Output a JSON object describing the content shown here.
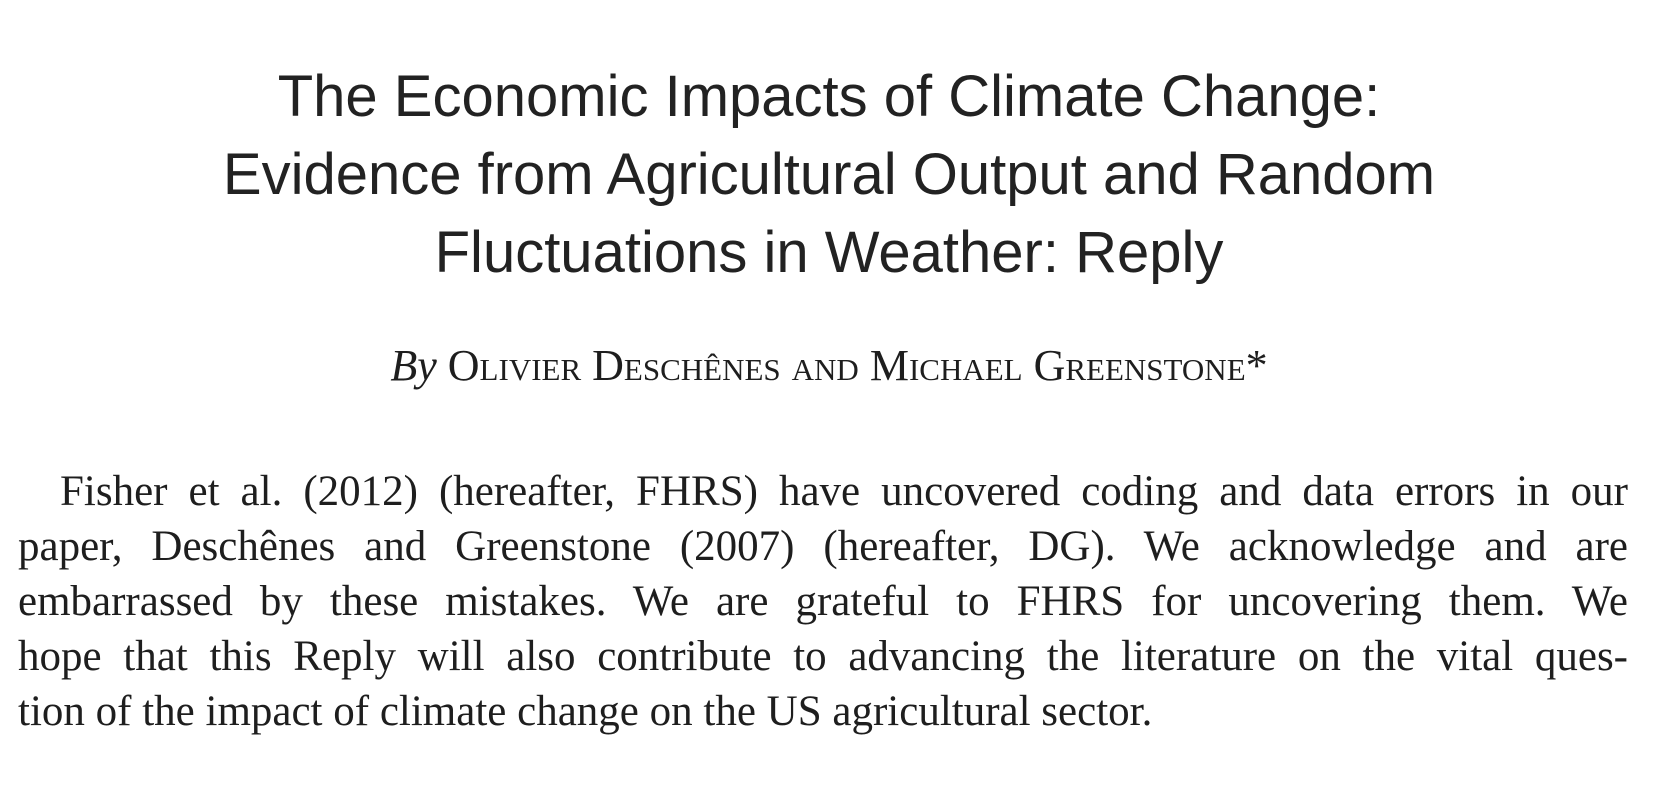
{
  "paper": {
    "title_lines": [
      "The Economic Impacts of Climate Change:",
      "Evidence from Agricultural Output and Random",
      "Fluctuations in Weather: Reply"
    ],
    "byline": {
      "by": "By",
      "authors": "Olivier Deschênes and Michael Greenstone*"
    },
    "abstract_lines": [
      "Fisher et al. (2012) (hereafter, FHRS) have uncovered coding and data errors in our",
      "paper, Deschênes and Greenstone (2007) (hereafter, DG). We acknowledge and are",
      "embarrassed by these mistakes. We are grateful to FHRS for uncovering them. We",
      "hope that this Reply will also contribute to advancing the literature on the vital ques-",
      "tion of the impact of climate change on the US agricultural sector."
    ]
  }
}
